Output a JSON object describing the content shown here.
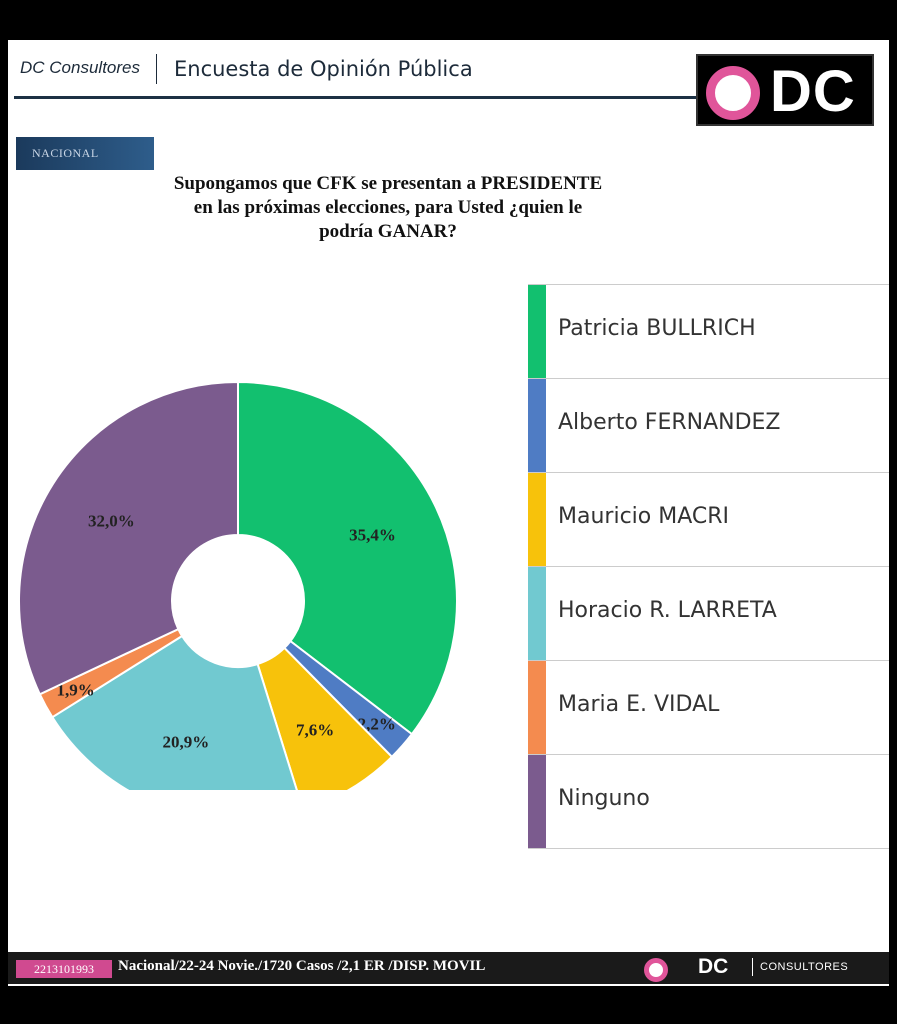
{
  "header": {
    "brand": "DC Consultores",
    "survey_title": "Encuesta de Opinión Pública",
    "logo_text": "DC"
  },
  "tag": "NACIONAL",
  "chart_data": {
    "type": "pie",
    "title": "Supongamos que CFK se presentan a PRESIDENTE\nen las próximas elecciones, para Usted ¿quien le\npodría GANAR?",
    "categories": [
      "Patricia BULLRICH",
      "Alberto FERNANDEZ",
      "Mauricio MACRI",
      "Horacio R. LARRETA",
      "Maria E. VIDAL",
      "Ninguno"
    ],
    "values": [
      35.4,
      2.2,
      7.6,
      20.9,
      1.9,
      32.0
    ],
    "data_labels": [
      "35,4%",
      "2,2%",
      "7,6%",
      "20,9%",
      "1,9%",
      "32,0%"
    ],
    "colors": [
      "#12c06f",
      "#4f7cc4",
      "#f7c20b",
      "#71c9d0",
      "#f48b4f",
      "#7b5b8e"
    ],
    "legend_position": "right",
    "donut": true
  },
  "footer": {
    "phone": "2213101993",
    "text": "Nacional/22-24 Novie./1720 Casos /2,1 ER /DISP. MOVIL",
    "logo_dc": "DC",
    "logo_consultores": "CONSULTORES"
  }
}
